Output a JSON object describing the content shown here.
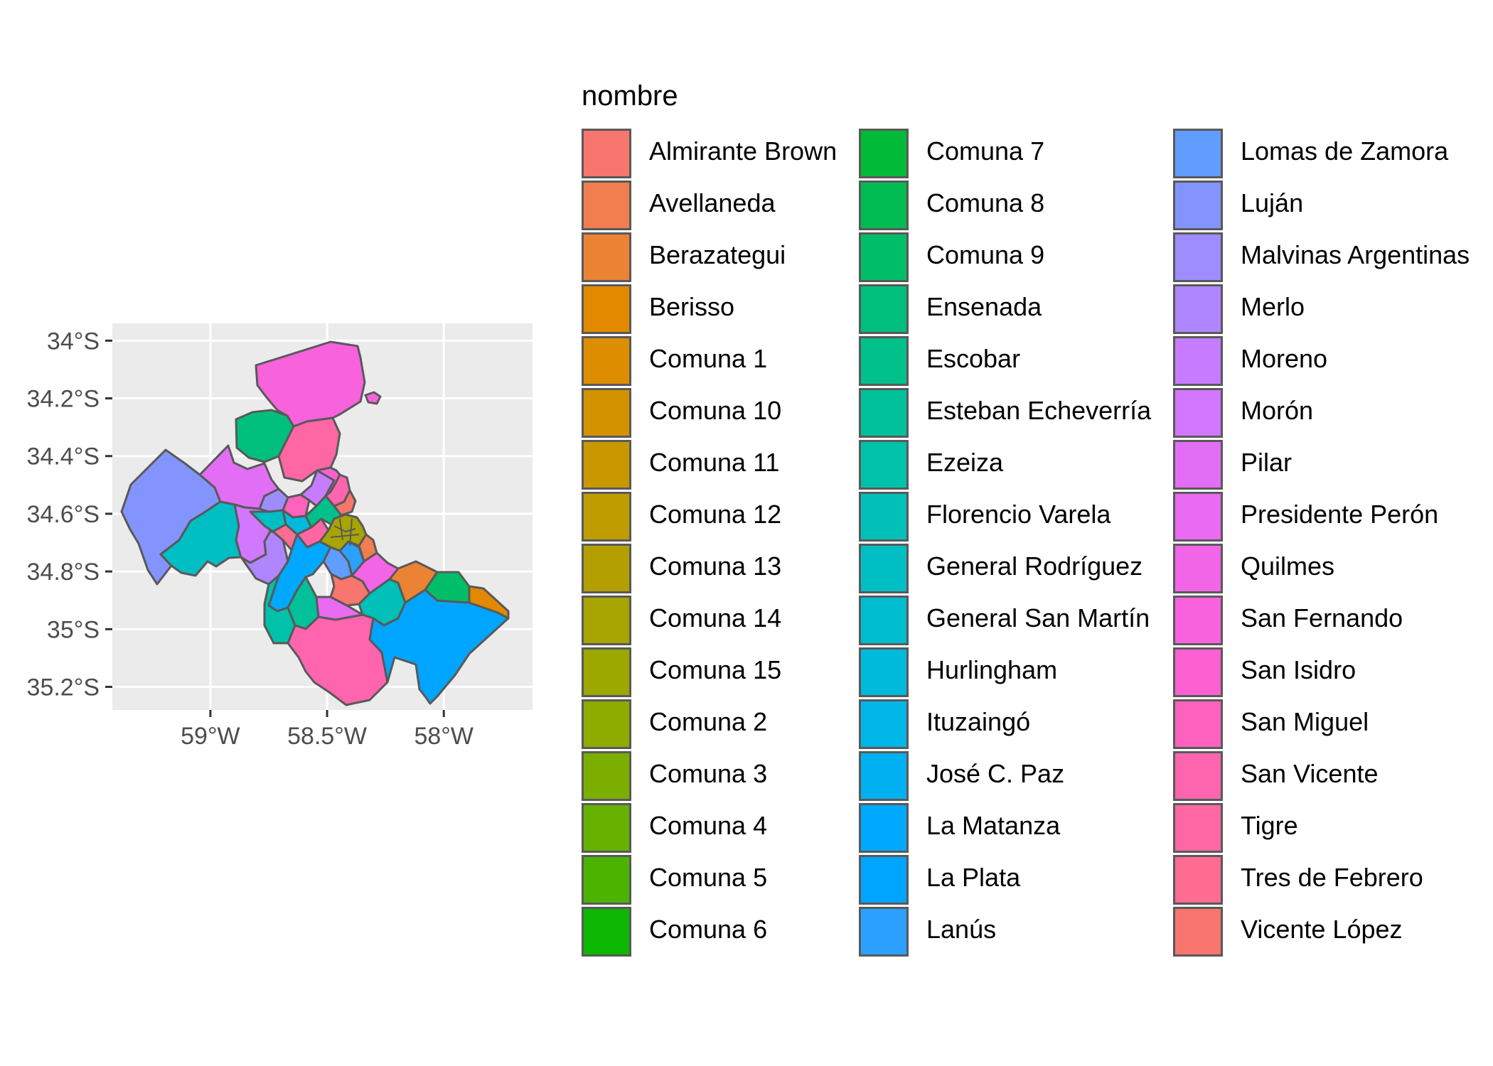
{
  "chart_data": {
    "type": "map",
    "legend_title": "nombre",
    "legend_placement": "right",
    "grid": true,
    "x_ticks": [
      {
        "value": -59.0,
        "label": "59°W"
      },
      {
        "value": -58.5,
        "label": "58.5°W"
      },
      {
        "value": -58.0,
        "label": "58°W"
      }
    ],
    "y_ticks": [
      {
        "value": -34.0,
        "label": "34°S"
      },
      {
        "value": -34.2,
        "label": "34.2°S"
      },
      {
        "value": -34.4,
        "label": "34.4°S"
      },
      {
        "value": -34.6,
        "label": "34.6°S"
      },
      {
        "value": -34.8,
        "label": "34.8°S"
      },
      {
        "value": -35.0,
        "label": "35°S"
      },
      {
        "value": -35.2,
        "label": "35.2°S"
      }
    ],
    "xlim": [
      -59.42,
      -57.62
    ],
    "ylim": [
      -35.28,
      -33.94
    ],
    "border_color": "#595959",
    "panel_color": "#ebebeb",
    "regions": [
      {
        "name": "Almirante Brown",
        "color": "#F8766D"
      },
      {
        "name": "Avellaneda",
        "color": "#F17E4F"
      },
      {
        "name": "Berazategui",
        "color": "#EB8335"
      },
      {
        "name": "Berisso",
        "color": "#E38900"
      },
      {
        "name": "Comuna 1",
        "color": "#DC8E00"
      },
      {
        "name": "Comuna 10",
        "color": "#D39200"
      },
      {
        "name": "Comuna 11",
        "color": "#C99800"
      },
      {
        "name": "Comuna 12",
        "color": "#BF9C00"
      },
      {
        "name": "Comuna 13",
        "color": "#B3A000"
      },
      {
        "name": "Comuna 14",
        "color": "#A8A400"
      },
      {
        "name": "Comuna 15",
        "color": "#9CA700"
      },
      {
        "name": "Comuna 2",
        "color": "#8EAB00"
      },
      {
        "name": "Comuna 3",
        "color": "#7CAE00"
      },
      {
        "name": "Comuna 4",
        "color": "#67B100"
      },
      {
        "name": "Comuna 5",
        "color": "#4CB400"
      },
      {
        "name": "Comuna 6",
        "color": "#0CB702"
      },
      {
        "name": "Comuna 7",
        "color": "#00BA38"
      },
      {
        "name": "Comuna 8",
        "color": "#00BC52"
      },
      {
        "name": "Comuna 9",
        "color": "#00BE67"
      },
      {
        "name": "Ensenada",
        "color": "#00BF7D"
      },
      {
        "name": "Escobar",
        "color": "#00C08B"
      },
      {
        "name": "Esteban Echeverría",
        "color": "#00C19A"
      },
      {
        "name": "Ezeiza",
        "color": "#00C1A9"
      },
      {
        "name": "Florencio Varela",
        "color": "#00C0B8"
      },
      {
        "name": "General Rodríguez",
        "color": "#00BFC4"
      },
      {
        "name": "General San Martín",
        "color": "#00BDD0"
      },
      {
        "name": "Hurlingham",
        "color": "#00BADC"
      },
      {
        "name": "Ituzaingó",
        "color": "#00B6E7"
      },
      {
        "name": "José C. Paz",
        "color": "#00B0F0"
      },
      {
        "name": "La Matanza",
        "color": "#00A9FF"
      },
      {
        "name": "La Plata",
        "color": "#00A5FF"
      },
      {
        "name": "Lanús",
        "color": "#2BA0FF"
      },
      {
        "name": "Lomas de Zamora",
        "color": "#619CFF"
      },
      {
        "name": "Luján",
        "color": "#8494FF"
      },
      {
        "name": "Malvinas Argentinas",
        "color": "#9D8DFF"
      },
      {
        "name": "Merlo",
        "color": "#AF86FF"
      },
      {
        "name": "Moreno",
        "color": "#C77CFF"
      },
      {
        "name": "Morón",
        "color": "#D277FF"
      },
      {
        "name": "Pilar",
        "color": "#E36EF6"
      },
      {
        "name": "Presidente Perón",
        "color": "#EA6AF1"
      },
      {
        "name": "Quilmes",
        "color": "#F265E7"
      },
      {
        "name": "San Fernando",
        "color": "#F962DD"
      },
      {
        "name": "San Isidro",
        "color": "#FD61D1"
      },
      {
        "name": "San Miguel",
        "color": "#FF62BC"
      },
      {
        "name": "San Vicente",
        "color": "#FF65AE"
      },
      {
        "name": "Tigre",
        "color": "#FF67A4"
      },
      {
        "name": "Tres de Febrero",
        "color": "#FF6C91"
      },
      {
        "name": "Vicente López",
        "color": "#F8766D"
      }
    ]
  }
}
